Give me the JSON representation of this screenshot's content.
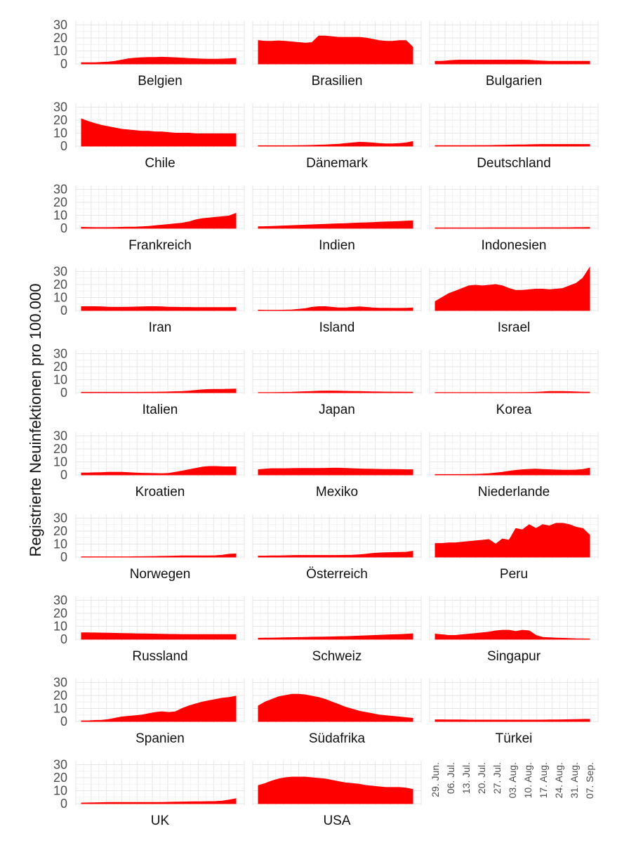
{
  "chart_data": {
    "type": "area",
    "ylabel": "Registrierte Neuinfektionen pro 100.000",
    "ylim": [
      0,
      33
    ],
    "yticks": [
      "0",
      "10",
      "20",
      "30"
    ],
    "x_ticks": [
      "29. Jun.",
      "06. Jul.",
      "13. Jul.",
      "20. Jul.",
      "27. Jul.",
      "03. Aug.",
      "10. Aug.",
      "17. Aug.",
      "24. Aug.",
      "31. Aug.",
      "07. Sep."
    ],
    "fill_color": "#ff0000",
    "grid": true,
    "panels": [
      {
        "name": "Belgien",
        "values": [
          1,
          1,
          1,
          1.2,
          1.5,
          2,
          3,
          4,
          4.5,
          4.8,
          5,
          5,
          5.2,
          5,
          4.8,
          4.5,
          4.2,
          4,
          3.8,
          3.6,
          3.6,
          3.8,
          4,
          4.2
        ]
      },
      {
        "name": "Brasilien",
        "values": [
          18,
          17.5,
          17.5,
          17.8,
          17.5,
          17,
          16.5,
          16,
          16.5,
          21.5,
          21.5,
          21,
          20.5,
          20.5,
          20.5,
          20.5,
          20,
          19,
          18,
          17.5,
          17.5,
          18,
          18,
          13
        ]
      },
      {
        "name": "Bulgarien",
        "values": [
          2,
          2,
          2.5,
          2.8,
          3,
          3,
          3,
          3,
          3,
          3,
          3,
          3,
          3,
          3,
          2.8,
          2.5,
          2.2,
          2,
          2,
          2,
          2,
          2,
          2,
          2
        ]
      },
      {
        "name": "Chile",
        "values": [
          21,
          19,
          17.5,
          16,
          15,
          14,
          13,
          12.5,
          12,
          11.5,
          11.5,
          11,
          11,
          10.5,
          10,
          10,
          10,
          9.5,
          9.5,
          9.5,
          9.5,
          9.5,
          9.5,
          9.5
        ]
      },
      {
        "name": "Dänemark",
        "values": [
          0.3,
          0.3,
          0.3,
          0.3,
          0.3,
          0.3,
          0.4,
          0.5,
          0.6,
          0.8,
          1,
          1.2,
          1.5,
          2,
          2.5,
          3,
          2.8,
          2.5,
          2,
          1.8,
          1.8,
          2,
          2.5,
          3.5
        ]
      },
      {
        "name": "Deutschland",
        "values": [
          0.4,
          0.4,
          0.4,
          0.4,
          0.4,
          0.4,
          0.5,
          0.5,
          0.5,
          0.6,
          0.7,
          0.8,
          0.9,
          1,
          1.1,
          1.2,
          1.3,
          1.3,
          1.3,
          1.3,
          1.3,
          1.3,
          1.3,
          1.3
        ]
      },
      {
        "name": "Frankreich",
        "values": [
          0.8,
          0.7,
          0.6,
          0.6,
          0.6,
          0.7,
          0.8,
          0.9,
          1,
          1.2,
          1.5,
          2,
          2.5,
          3,
          3.5,
          4,
          5,
          6.5,
          7.5,
          8,
          8.5,
          9,
          9.5,
          11.5
        ]
      },
      {
        "name": "Indien",
        "values": [
          1.2,
          1.3,
          1.5,
          1.7,
          1.9,
          2.1,
          2.3,
          2.5,
          2.7,
          2.9,
          3.1,
          3.3,
          3.5,
          3.7,
          3.9,
          4.1,
          4.3,
          4.5,
          4.7,
          4.9,
          5.1,
          5.3,
          5.5,
          5.8
        ]
      },
      {
        "name": "Indonesien",
        "values": [
          0.3,
          0.3,
          0.3,
          0.3,
          0.3,
          0.3,
          0.3,
          0.3,
          0.4,
          0.4,
          0.4,
          0.4,
          0.4,
          0.4,
          0.4,
          0.4,
          0.5,
          0.5,
          0.5,
          0.5,
          0.5,
          0.6,
          0.6,
          0.7
        ]
      },
      {
        "name": "Iran",
        "values": [
          3,
          3,
          3,
          2.8,
          2.6,
          2.5,
          2.5,
          2.6,
          2.7,
          2.8,
          3,
          3,
          2.8,
          2.6,
          2.5,
          2.4,
          2.4,
          2.3,
          2.3,
          2.3,
          2.3,
          2.3,
          2.3,
          2.4
        ]
      },
      {
        "name": "Island",
        "values": [
          0.3,
          0.2,
          0.2,
          0.2,
          0.3,
          0.5,
          1,
          1.5,
          2.5,
          3,
          3,
          2.5,
          2,
          2,
          2.5,
          2.8,
          2.5,
          2,
          1.8,
          1.8,
          1.7,
          1.7,
          1.8,
          2
        ]
      },
      {
        "name": "Israel",
        "values": [
          7,
          10,
          13,
          15,
          17,
          19,
          19.5,
          19,
          19.5,
          20,
          19,
          17,
          15.5,
          15.5,
          16,
          16.5,
          16.5,
          16,
          16.5,
          17,
          19,
          21,
          25,
          33
        ]
      },
      {
        "name": "Italien",
        "values": [
          0.3,
          0.3,
          0.3,
          0.3,
          0.3,
          0.3,
          0.3,
          0.3,
          0.3,
          0.3,
          0.4,
          0.4,
          0.5,
          0.6,
          0.8,
          1,
          1.3,
          1.8,
          2.2,
          2.5,
          2.6,
          2.6,
          2.7,
          2.8
        ]
      },
      {
        "name": "Japan",
        "values": [
          0.1,
          0.1,
          0.1,
          0.2,
          0.3,
          0.4,
          0.6,
          0.8,
          1,
          1.2,
          1.3,
          1.3,
          1.2,
          1.1,
          1,
          0.9,
          0.8,
          0.7,
          0.6,
          0.5,
          0.5,
          0.5,
          0.4,
          0.4
        ]
      },
      {
        "name": "Korea",
        "values": [
          0.1,
          0.1,
          0.1,
          0.1,
          0.1,
          0.1,
          0.1,
          0.1,
          0.1,
          0.1,
          0.1,
          0.1,
          0.1,
          0.1,
          0.2,
          0.3,
          0.6,
          0.9,
          1,
          0.9,
          0.8,
          0.6,
          0.5,
          0.4
        ]
      },
      {
        "name": "Kroatien",
        "values": [
          1.5,
          1.5,
          1.7,
          1.8,
          2,
          2,
          2,
          1.8,
          1.5,
          1.3,
          1.2,
          1.1,
          1,
          1.2,
          2,
          3,
          4,
          5,
          6,
          6.5,
          6.5,
          6.3,
          6.2,
          6.2
        ]
      },
      {
        "name": "Mexiko",
        "values": [
          4,
          4.5,
          4.8,
          4.8,
          4.8,
          4.9,
          5,
          5,
          5,
          5,
          5.1,
          5.2,
          5.2,
          5,
          4.8,
          4.6,
          4.5,
          4.4,
          4.3,
          4.2,
          4.2,
          4.1,
          4,
          4
        ]
      },
      {
        "name": "Niederlande",
        "values": [
          0.3,
          0.3,
          0.3,
          0.3,
          0.3,
          0.4,
          0.5,
          0.7,
          1,
          1.5,
          2,
          2.8,
          3.5,
          4,
          4.3,
          4.5,
          4.2,
          4,
          3.8,
          3.7,
          3.7,
          3.8,
          4.2,
          5.2
        ]
      },
      {
        "name": "Norwegen",
        "values": [
          0.2,
          0.2,
          0.2,
          0.2,
          0.2,
          0.2,
          0.2,
          0.2,
          0.3,
          0.3,
          0.4,
          0.5,
          0.6,
          0.7,
          0.8,
          0.9,
          1,
          1,
          1,
          1,
          1.1,
          1.5,
          2.2,
          2.5
        ]
      },
      {
        "name": "Österreich",
        "values": [
          0.8,
          0.8,
          0.9,
          1,
          1.1,
          1.2,
          1.3,
          1.3,
          1.3,
          1.3,
          1.3,
          1.3,
          1.3,
          1.4,
          1.5,
          1.8,
          2.2,
          2.8,
          3.2,
          3.4,
          3.5,
          3.6,
          3.8,
          4.5
        ]
      },
      {
        "name": "Peru",
        "values": [
          10.5,
          10.5,
          11,
          11,
          11.5,
          12,
          12.5,
          13,
          13.5,
          10,
          14,
          13,
          22,
          21,
          25,
          22,
          25,
          24,
          26,
          26,
          25,
          23,
          22,
          17
        ]
      },
      {
        "name": "Russland",
        "values": [
          5,
          5,
          4.9,
          4.8,
          4.7,
          4.6,
          4.5,
          4.4,
          4.3,
          4.2,
          4.1,
          4,
          3.9,
          3.8,
          3.8,
          3.7,
          3.7,
          3.7,
          3.6,
          3.6,
          3.6,
          3.6,
          3.6,
          3.6
        ]
      },
      {
        "name": "Schweiz",
        "values": [
          0.8,
          0.9,
          1,
          1.1,
          1.2,
          1.3,
          1.4,
          1.5,
          1.6,
          1.7,
          1.8,
          1.9,
          2,
          2.1,
          2.3,
          2.5,
          2.7,
          2.9,
          3.1,
          3.3,
          3.5,
          3.7,
          3.9,
          4.2
        ]
      },
      {
        "name": "Singapur",
        "values": [
          4,
          3.5,
          3,
          3,
          3.5,
          4,
          4.5,
          5,
          5.5,
          6.5,
          7,
          7,
          6,
          7,
          6.5,
          3,
          1.5,
          1.2,
          1,
          0.8,
          0.6,
          0.4,
          0.3,
          0.2
        ]
      },
      {
        "name": "Spanien",
        "values": [
          0.5,
          0.5,
          0.8,
          1,
          1.5,
          2.5,
          3.5,
          4,
          4.5,
          5,
          6,
          7,
          7.5,
          7,
          7.5,
          10,
          12,
          13.5,
          15,
          16,
          17,
          18,
          18.5,
          19.5
        ]
      },
      {
        "name": "Südafrika",
        "values": [
          12,
          15,
          17,
          19,
          20,
          21,
          21,
          20.5,
          19.5,
          18.5,
          17,
          15,
          13,
          11,
          9.5,
          8,
          7,
          6,
          5,
          4.5,
          4,
          3.5,
          3,
          2.5
        ]
      },
      {
        "name": "Türkei",
        "values": [
          1.3,
          1.3,
          1.2,
          1.2,
          1.2,
          1.1,
          1.1,
          1.1,
          1.1,
          1.1,
          1.1,
          1.1,
          1.1,
          1.1,
          1.1,
          1.1,
          1.1,
          1.2,
          1.2,
          1.3,
          1.4,
          1.5,
          1.6,
          1.7
        ]
      },
      {
        "name": "UK",
        "values": [
          0.5,
          0.6,
          0.7,
          0.8,
          0.9,
          1,
          1,
          1,
          1,
          1,
          1,
          1,
          1,
          1.1,
          1.2,
          1.3,
          1.4,
          1.5,
          1.5,
          1.6,
          1.7,
          2,
          2.8,
          3.8
        ]
      },
      {
        "name": "USA",
        "values": [
          14,
          15.5,
          17.5,
          19,
          20,
          20.5,
          20.5,
          20.5,
          20,
          19.5,
          19,
          18,
          17,
          16,
          15.5,
          15,
          14,
          13.5,
          13,
          12.5,
          12.5,
          12.5,
          12,
          11
        ]
      }
    ]
  }
}
